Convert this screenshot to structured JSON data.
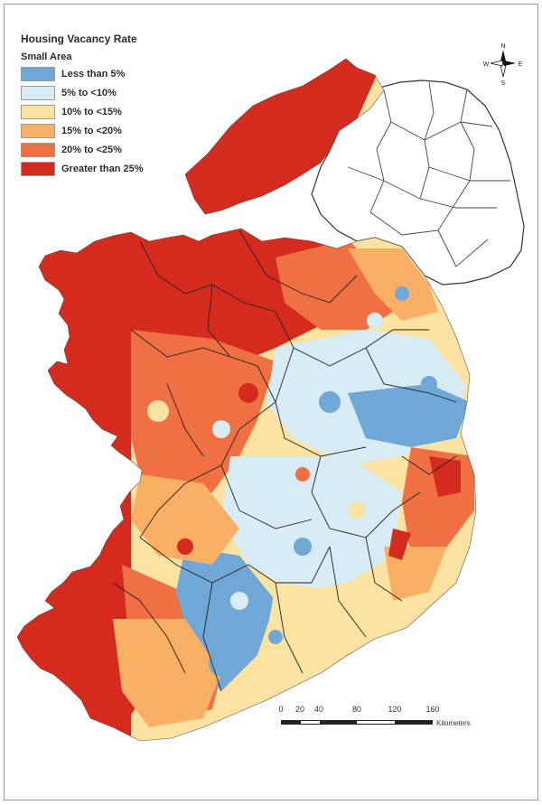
{
  "legend": {
    "title": "Housing Vacancy Rate",
    "subtitle": "Small Area",
    "items": [
      {
        "label": "Less than 5%",
        "color": "#6fa8d6"
      },
      {
        "label": "5% to <10%",
        "color": "#d7ecf5"
      },
      {
        "label": "10% to <15%",
        "color": "#fde3a2"
      },
      {
        "label": "15% to <20%",
        "color": "#f9b064"
      },
      {
        "label": "20% to <25%",
        "color": "#ef7042"
      },
      {
        "label": "Greater than 25%",
        "color": "#d52b1e"
      }
    ]
  },
  "compass": {
    "n": "N",
    "s": "S",
    "e": "E",
    "w": "W"
  },
  "scale_bar": {
    "ticks": [
      "0",
      "20",
      "40",
      "80",
      "120",
      "160"
    ],
    "unit": "Kilometers"
  },
  "colors": {
    "border": "#222222",
    "outline": "#555555"
  }
}
